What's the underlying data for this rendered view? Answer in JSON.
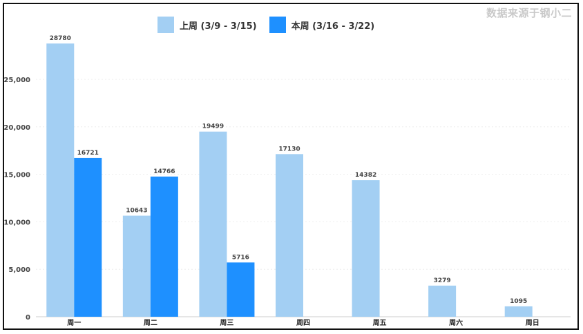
{
  "source_text": "数据来源于钢小二",
  "colors": {
    "last_week": "#a3cff3",
    "this_week": "#1e90ff",
    "grid": "#eeeeee",
    "axis": "#cccccc"
  },
  "chart_data": {
    "type": "bar",
    "title": "",
    "xlabel": "",
    "ylabel": "",
    "categories": [
      "周一",
      "周二",
      "周三",
      "周四",
      "周五",
      "周六",
      "周日"
    ],
    "series": [
      {
        "name": "上周 (3/9 - 3/15)",
        "values": [
          28780,
          10643,
          19499,
          17130,
          14382,
          3279,
          1095
        ]
      },
      {
        "name": "本周 (3/16 - 3/22)",
        "values": [
          16721,
          14766,
          5716,
          null,
          null,
          null,
          null
        ]
      }
    ],
    "ylim": [
      0,
      28780
    ],
    "yticks": [
      0,
      5000,
      10000,
      15000,
      20000,
      25000
    ],
    "ytick_labels": [
      "0",
      "5,000",
      "10,000",
      "15,000",
      "20,000",
      "25,000"
    ],
    "grid": true,
    "legend_position": "top-center"
  }
}
